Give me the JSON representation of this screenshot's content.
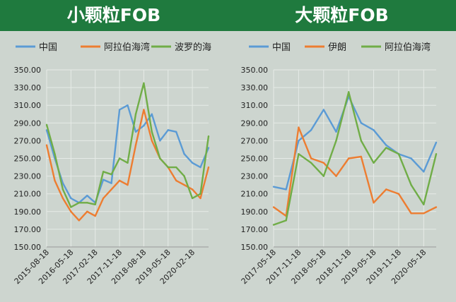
{
  "chart_data": [
    {
      "type": "line",
      "title": "小颗粒FOB",
      "x": [
        "2015-08-18",
        "2015-11-18",
        "2016-02-18",
        "2016-05-18",
        "2016-08-18",
        "2016-11-18",
        "2017-02-18",
        "2017-05-18",
        "2017-08-18",
        "2017-11-18",
        "2018-02-18",
        "2018-05-18",
        "2018-08-18",
        "2018-11-18",
        "2019-02-18",
        "2019-05-18",
        "2019-08-18",
        "2019-11-18",
        "2020-02-18",
        "2020-05-18",
        "2020-08-18"
      ],
      "xticks": [
        "2015-08-18",
        "2016-05-18",
        "2017-02-18",
        "2017-11-18",
        "2018-08-18",
        "2019-05-18",
        "2020-02-18"
      ],
      "yticks": [
        "150.00",
        "170.00",
        "190.00",
        "210.00",
        "230.00",
        "250.00",
        "270.00",
        "290.00",
        "310.00",
        "330.00",
        "350.00"
      ],
      "ylim": [
        150,
        350
      ],
      "legend_position": "top",
      "grid": true,
      "series": [
        {
          "name": "中国",
          "color": "#5b9bd5",
          "values": [
            282,
            250,
            222,
            205,
            200,
            208,
            200,
            226,
            222,
            305,
            310,
            280,
            287,
            300,
            270,
            282,
            280,
            255,
            245,
            240,
            262
          ]
        },
        {
          "name": "阿拉伯海湾",
          "color": "#ed7d31",
          "values": [
            265,
            225,
            205,
            190,
            180,
            190,
            185,
            205,
            215,
            225,
            220,
            265,
            305,
            270,
            250,
            240,
            225,
            220,
            215,
            205,
            240
          ]
        },
        {
          "name": "波罗的海",
          "color": "#70ad47",
          "values": [
            288,
            255,
            215,
            195,
            200,
            200,
            198,
            235,
            232,
            250,
            245,
            300,
            335,
            280,
            250,
            240,
            240,
            230,
            205,
            210,
            275
          ]
        }
      ]
    },
    {
      "type": "line",
      "title": "大颗粒FOB",
      "x": [
        "2017-05-18",
        "2017-08-18",
        "2017-11-18",
        "2018-02-18",
        "2018-05-18",
        "2018-08-18",
        "2018-11-18",
        "2019-02-18",
        "2019-05-18",
        "2019-08-18",
        "2019-11-18",
        "2020-02-18",
        "2020-05-18",
        "2020-08-18"
      ],
      "xticks": [
        "2017-05-18",
        "2017-11-18",
        "2018-05-18",
        "2018-11-18",
        "2019-05-18",
        "2019-11-18",
        "2020-05-18"
      ],
      "yticks": [
        "150.00",
        "170.00",
        "190.00",
        "210.00",
        "230.00",
        "250.00",
        "270.00",
        "290.00",
        "310.00",
        "330.00",
        "350.00"
      ],
      "ylim": [
        150,
        350
      ],
      "legend_position": "top",
      "grid": true,
      "series": [
        {
          "name": "中国",
          "color": "#5b9bd5",
          "values": [
            218,
            215,
            270,
            282,
            305,
            280,
            320,
            290,
            282,
            265,
            255,
            250,
            235,
            268
          ]
        },
        {
          "name": "伊朗",
          "color": "#ed7d31",
          "values": [
            195,
            185,
            285,
            250,
            245,
            230,
            250,
            252,
            200,
            215,
            210,
            188,
            188,
            195
          ]
        },
        {
          "name": "阿拉伯海湾",
          "color": "#70ad47",
          "values": [
            175,
            180,
            255,
            245,
            230,
            270,
            325,
            270,
            245,
            262,
            255,
            220,
            198,
            255
          ]
        }
      ]
    }
  ]
}
